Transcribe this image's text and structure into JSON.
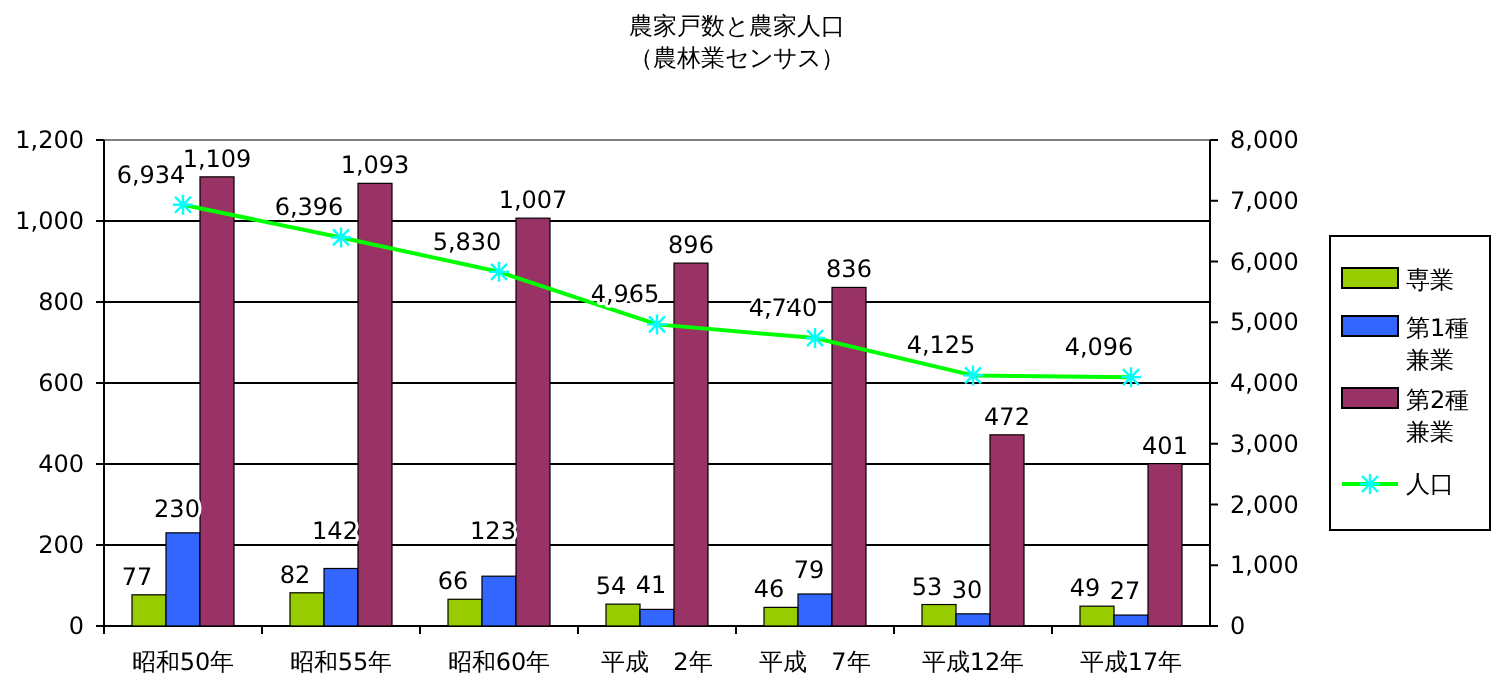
{
  "chart_data": {
    "type": "bar",
    "title": "農家戸数と農家人口",
    "subtitle": "（農林業センサス）",
    "categories": [
      "昭和50年",
      "昭和55年",
      "昭和60年",
      "平成　2年",
      "平成　7年",
      "平成12年",
      "平成17年"
    ],
    "series": [
      {
        "name": "専業",
        "color": "#99cc00",
        "values": [
          77,
          82,
          66,
          54,
          46,
          53,
          49
        ],
        "value_labels": [
          "77",
          "82",
          "66",
          "54",
          "46",
          "53",
          "49"
        ]
      },
      {
        "name": "第1種兼業",
        "color": "#3366ff",
        "values": [
          230,
          142,
          123,
          41,
          79,
          30,
          27
        ],
        "value_labels": [
          "230",
          "142",
          "123",
          "41",
          "79",
          "30",
          "27"
        ]
      },
      {
        "name": "第2種兼業",
        "color": "#993366",
        "values": [
          1109,
          1093,
          1007,
          896,
          836,
          472,
          401
        ],
        "value_labels": [
          "1,109",
          "1,093",
          "1,007",
          "896",
          "836",
          "472",
          "401"
        ]
      },
      {
        "name": "人口",
        "type": "line",
        "axis": "y2",
        "color": "#00ff00",
        "values": [
          6934,
          6396,
          5830,
          4965,
          4740,
          4125,
          4096
        ],
        "value_labels": [
          "6,934",
          "6,396",
          "5,830",
          "4,965",
          "4,740",
          "4,125",
          "4,096"
        ]
      }
    ],
    "ylim": [
      0,
      1200
    ],
    "yticks": [
      0,
      200,
      400,
      600,
      800,
      {
        "value": 1000,
        "label": "1,000"
      },
      {
        "value": 1200,
        "label": "1,200"
      }
    ],
    "y2lim": [
      0,
      8000
    ],
    "y2ticks": [
      0,
      {
        "value": 1000,
        "label": "1,000"
      },
      {
        "value": 2000,
        "label": "2,000"
      },
      {
        "value": 3000,
        "label": "3,000"
      },
      {
        "value": 4000,
        "label": "4,000"
      },
      {
        "value": 5000,
        "label": "5,000"
      },
      {
        "value": 6000,
        "label": "6,000"
      },
      {
        "value": 7000,
        "label": "7,000"
      },
      {
        "value": 8000,
        "label": "8,000"
      }
    ],
    "grid": "y",
    "legend": "right",
    "marker": "cross"
  }
}
